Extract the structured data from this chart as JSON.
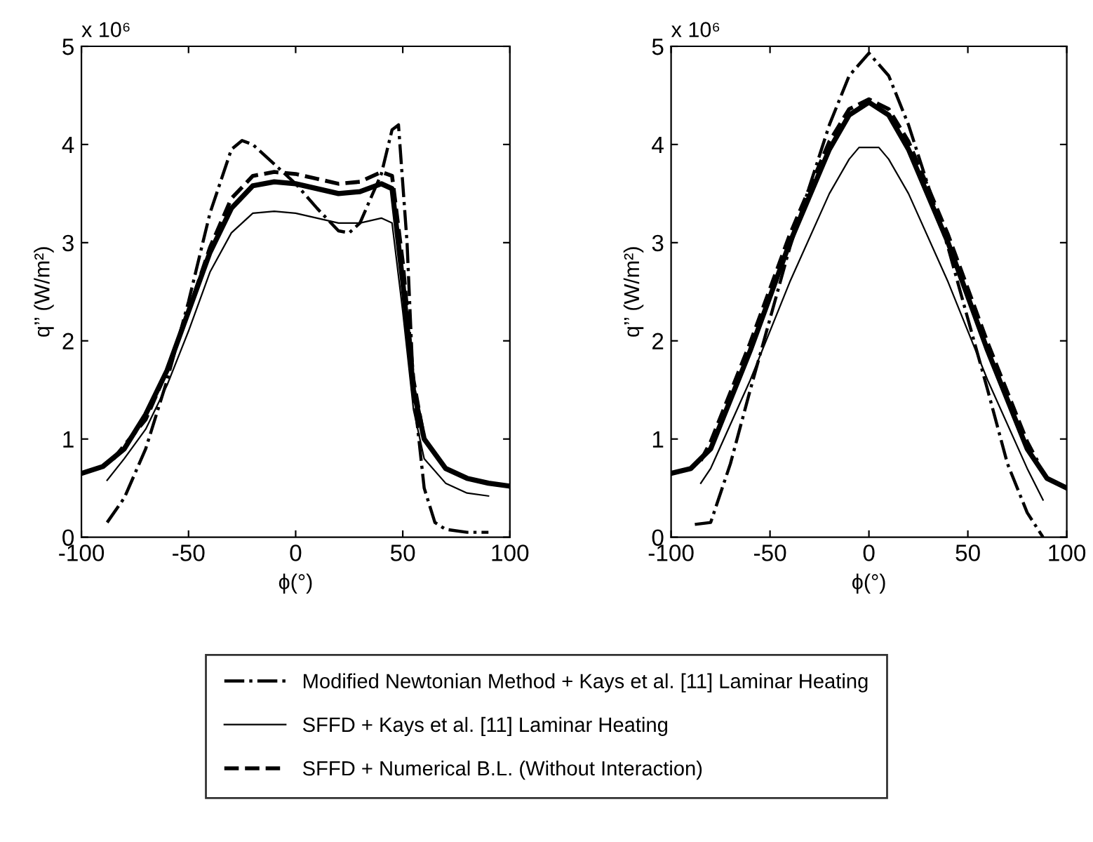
{
  "chart_data": [
    {
      "type": "line",
      "xlabel": "ϕ(°)",
      "ylabel": "q’’ (W/m²)",
      "annotations": [
        "x 10⁶"
      ],
      "xlim": [
        -100,
        100
      ],
      "xticks": [
        -100,
        -50,
        0,
        50,
        100
      ],
      "ylim": [
        0,
        5
      ],
      "yticks": [
        0,
        1,
        2,
        3,
        4,
        5
      ],
      "grid": false,
      "legend": "bottom",
      "series": [
        {
          "name": "Modified Newtonian Method + Kays et al. [11] Laminar Heating",
          "color": "#000000",
          "line_style": "dashdot",
          "x": [
            -88,
            -80,
            -70,
            -60,
            -50,
            -40,
            -30,
            -25,
            -20,
            -10,
            0,
            10,
            20,
            25,
            30,
            40,
            45,
            48,
            52,
            55,
            60,
            65,
            70,
            80,
            90
          ],
          "values": [
            0.15,
            0.4,
            0.9,
            1.6,
            2.4,
            3.3,
            3.95,
            4.04,
            4.0,
            3.8,
            3.6,
            3.35,
            3.12,
            3.1,
            3.2,
            3.7,
            4.15,
            4.2,
            3.0,
            1.5,
            0.5,
            0.15,
            0.08,
            0.05,
            0.05
          ]
        },
        {
          "name": "SFFD + Kays et al. [11] Laminar Heating",
          "color": "#000000",
          "line_style": "solid",
          "x": [
            -88,
            -80,
            -70,
            -60,
            -50,
            -40,
            -30,
            -20,
            -10,
            0,
            10,
            20,
            30,
            40,
            45,
            50,
            55,
            60,
            70,
            80,
            90
          ],
          "values": [
            0.58,
            0.8,
            1.1,
            1.55,
            2.1,
            2.7,
            3.1,
            3.3,
            3.32,
            3.3,
            3.25,
            3.2,
            3.2,
            3.25,
            3.2,
            2.3,
            1.3,
            0.8,
            0.55,
            0.45,
            0.42
          ]
        },
        {
          "name": "SFFD + Numerical B.L. (Without Interaction)",
          "color": "#000000",
          "line_style": "dashed",
          "x": [
            -85,
            -70,
            -60,
            -50,
            -40,
            -30,
            -20,
            -10,
            0,
            10,
            20,
            30,
            40,
            45,
            50,
            55,
            60,
            70,
            80,
            90
          ],
          "values": [
            0.8,
            1.2,
            1.7,
            2.3,
            2.95,
            3.45,
            3.68,
            3.72,
            3.7,
            3.65,
            3.6,
            3.62,
            3.72,
            3.68,
            2.8,
            1.6,
            1.0,
            0.7,
            0.6,
            0.55
          ]
        },
        {
          "color": "#000000",
          "line_style": "solid",
          "x": [
            -100,
            -90,
            -80,
            -70,
            -60,
            -50,
            -40,
            -30,
            -20,
            -10,
            0,
            10,
            20,
            30,
            40,
            45,
            50,
            55,
            60,
            70,
            80,
            90,
            100
          ],
          "values": [
            0.65,
            0.72,
            0.9,
            1.25,
            1.7,
            2.3,
            2.9,
            3.35,
            3.58,
            3.62,
            3.6,
            3.55,
            3.5,
            3.52,
            3.6,
            3.55,
            2.6,
            1.5,
            1.0,
            0.7,
            0.6,
            0.55,
            0.52
          ]
        }
      ]
    },
    {
      "type": "line",
      "xlabel": "ϕ(°)",
      "ylabel": "q’’ (W/m²)",
      "annotations": [
        "x 10⁶"
      ],
      "xlim": [
        -100,
        100
      ],
      "xticks": [
        -100,
        -50,
        0,
        50,
        100
      ],
      "ylim": [
        0,
        5
      ],
      "yticks": [
        0,
        1,
        2,
        3,
        4,
        5
      ],
      "grid": false,
      "legend": "bottom",
      "series": [
        {
          "name": "Modified Newtonian Method + Kays et al. [11] Laminar Heating",
          "color": "#000000",
          "line_style": "dashdot",
          "x": [
            -88,
            -80,
            -70,
            -60,
            -40,
            -20,
            -10,
            0,
            10,
            20,
            40,
            60,
            70,
            80,
            88
          ],
          "values": [
            0.13,
            0.15,
            0.75,
            1.5,
            2.95,
            4.2,
            4.7,
            4.93,
            4.7,
            4.2,
            2.95,
            1.5,
            0.75,
            0.25,
            0.0
          ]
        },
        {
          "name": "SFFD + Kays et al. [11] Laminar Heating",
          "color": "#000000",
          "line_style": "solid",
          "x": [
            -85,
            -80,
            -60,
            -40,
            -20,
            -10,
            -5,
            5,
            10,
            20,
            40,
            60,
            80,
            88
          ],
          "values": [
            0.55,
            0.7,
            1.6,
            2.6,
            3.5,
            3.85,
            3.97,
            3.97,
            3.85,
            3.5,
            2.6,
            1.6,
            0.7,
            0.38
          ]
        },
        {
          "name": "SFFD + Numerical B.L. (Without Interaction)",
          "color": "#000000",
          "line_style": "dashed",
          "x": [
            -85,
            -80,
            -60,
            -40,
            -20,
            -10,
            0,
            10,
            20,
            40,
            60,
            80,
            85
          ],
          "values": [
            0.78,
            0.97,
            1.98,
            3.08,
            4.03,
            4.36,
            4.46,
            4.36,
            4.03,
            3.08,
            1.98,
            0.97,
            0.78
          ]
        },
        {
          "color": "#000000",
          "line_style": "solid",
          "x": [
            -100,
            -90,
            -80,
            -60,
            -40,
            -20,
            -10,
            0,
            10,
            20,
            40,
            60,
            80,
            90,
            100
          ],
          "values": [
            0.65,
            0.7,
            0.9,
            1.9,
            3.0,
            3.95,
            4.3,
            4.43,
            4.3,
            3.95,
            3.0,
            1.9,
            0.9,
            0.6,
            0.5
          ]
        }
      ]
    }
  ]
}
